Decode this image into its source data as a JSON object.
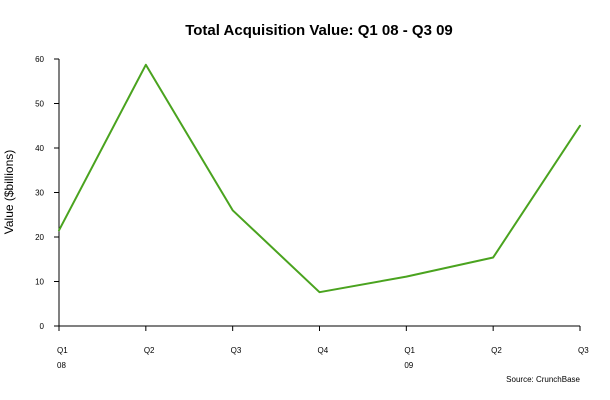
{
  "chart_data": {
    "type": "line",
    "title": "Total Acquisition Value: Q1 08 - Q3 09",
    "xlabel": "",
    "ylabel": "Value ($billions)",
    "categories": [
      "Q1",
      "Q2",
      "Q3",
      "Q4",
      "Q1",
      "Q2",
      "Q3"
    ],
    "category_years": [
      "08",
      "",
      "",
      "",
      "09",
      "",
      ""
    ],
    "series": [
      {
        "values": [
          21.5,
          58.7,
          26,
          7.6,
          11.1,
          15.4,
          45
        ]
      }
    ],
    "ylim": [
      0,
      60
    ],
    "yticks": [
      0,
      10,
      20,
      30,
      40,
      50,
      60
    ],
    "grid": false,
    "legend": "none",
    "line_color": "#4aa31f",
    "source": "Source: CrunchBase"
  }
}
